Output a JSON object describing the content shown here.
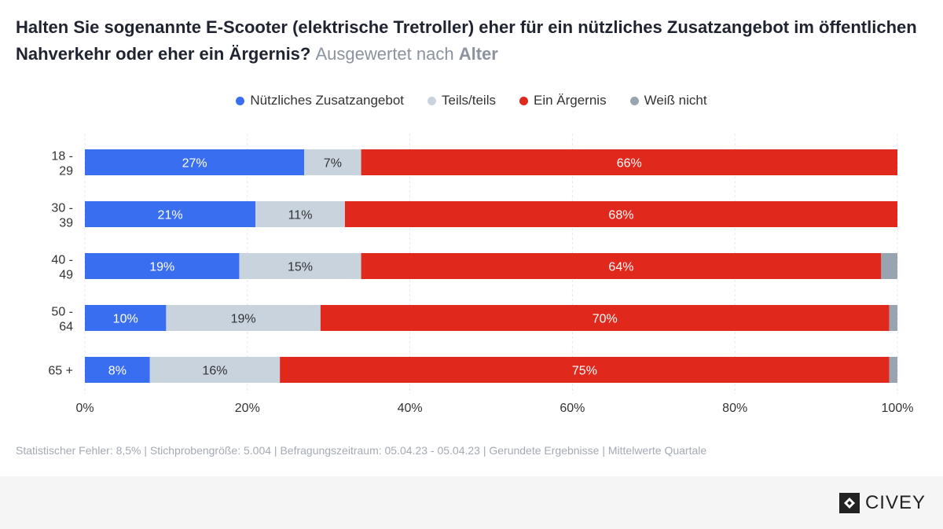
{
  "title": {
    "main": "Halten Sie sogenannte E-Scooter (elektrische Tretroller) eher für ein nützliches Zusatzangebot im öffentlichen Nahverkehr oder eher ein Ärgernis?",
    "sub_prefix": "Ausgewertet nach",
    "sub_bold": "Alter"
  },
  "footnote": "Statistischer Fehler: 8,5% | Stichprobengröße: 5.004 | Befragungszeitraum: 05.04.23 - 05.04.23 | Gerundete Ergebnisse | Mittelwerte Quartale",
  "brand": {
    "name": "CIVEY",
    "icon": "civey-logo-icon"
  },
  "chart_data": {
    "type": "bar",
    "orientation": "horizontal",
    "stacked": true,
    "categories": [
      "18 -\n29",
      "30 -\n39",
      "40 -\n49",
      "50 -\n64",
      "65 +"
    ],
    "series": [
      {
        "name": "Nützliches Zusatzangebot",
        "color": "#3a6ef0",
        "label_color": "#ffffff",
        "values": [
          27,
          21,
          19,
          10,
          8
        ]
      },
      {
        "name": "Teils/teils",
        "color": "#c8d3de",
        "label_color": "#333333",
        "values": [
          7,
          11,
          15,
          19,
          16
        ]
      },
      {
        "name": "Ein Ärgernis",
        "color": "#e0281c",
        "label_color": "#ffffff",
        "values": [
          66,
          68,
          64,
          70,
          75
        ]
      },
      {
        "name": "Weiß nicht",
        "color": "#98a4af",
        "label_color": "#333333",
        "values": [
          0,
          0,
          2,
          1,
          1
        ]
      }
    ],
    "data_labels": [
      [
        "27%",
        "21%",
        "19%",
        "10%",
        "8%"
      ],
      [
        "7%",
        "11%",
        "15%",
        "19%",
        "16%"
      ],
      [
        "66%",
        "68%",
        "64%",
        "70%",
        "75%"
      ],
      [
        "",
        "",
        "",
        "",
        ""
      ]
    ],
    "xlim": [
      0,
      100
    ],
    "xticks": [
      0,
      20,
      40,
      60,
      80,
      100
    ],
    "xtick_labels": [
      "0%",
      "20%",
      "40%",
      "60%",
      "80%",
      "100%"
    ],
    "grid": true,
    "legend_position": "top-center"
  }
}
